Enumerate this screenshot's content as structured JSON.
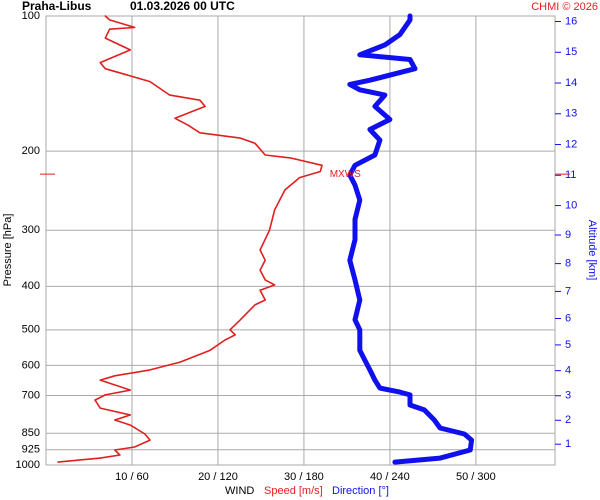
{
  "chart_data": {
    "type": "line",
    "title": "Praha-Libus",
    "subtitle": "01.03.2026 00 UTC",
    "credit": "CHMI © 2026",
    "ylabel": "Pressure [hPa]",
    "y2label": "Altitude [km]",
    "xlabel": "WIND",
    "y_scale": "log",
    "y2_scale": "standard-atmosphere",
    "grid": true,
    "xlim": [
      0,
      59.2
    ],
    "x2lim": [
      0,
      355.2
    ],
    "ylim": [
      1000,
      100
    ],
    "xticks": [
      {
        "value": 10,
        "label": "10 / 60"
      },
      {
        "value": 20,
        "label": "20 / 120"
      },
      {
        "value": 30,
        "label": "30 / 180"
      },
      {
        "value": 40,
        "label": "40 / 240"
      },
      {
        "value": 50,
        "label": "50 / 300"
      }
    ],
    "yticks": [
      100,
      200,
      300,
      400,
      500,
      600,
      700,
      850,
      925,
      1000
    ],
    "y2ticks": [
      1,
      2,
      3,
      4,
      5,
      6,
      7,
      8,
      9,
      10,
      11,
      12,
      13,
      14,
      15,
      16
    ],
    "annotations": [
      {
        "text": "MXWS",
        "x": 33,
        "y": 225,
        "color": "#e02020"
      }
    ],
    "series": [
      {
        "name": "Speed [m/s]",
        "color": "#e02020",
        "width": 1.6,
        "x": [
          1.4,
          6.3,
          8.6,
          8.0,
          10.3,
          12.1,
          11.5,
          9.8,
          8.0,
          9.8,
          6.3,
          5.7,
          6.9,
          9.8,
          6.3,
          8.0,
          12.1,
          15.6,
          19.1,
          20.8,
          22.0,
          21.4,
          22.6,
          24.3,
          25.5,
          24.9,
          26.6,
          25.5,
          24.9,
          25.5,
          24.9,
          26.0,
          26.6,
          27.8,
          29.5,
          31.9,
          32.1,
          28.4,
          25.5,
          24.3,
          22.6,
          17.9,
          16.5,
          15.0,
          18.5,
          17.9,
          14.4,
          12.1,
          6.9,
          6.3,
          9.8,
          6.9,
          7.4,
          10.3,
          7.4,
          6.9
        ],
        "y": [
          985,
          965,
          950,
          926,
          912,
          880,
          853,
          815,
          794,
          774,
          747,
          717,
          698,
          681,
          647,
          633,
          614,
          590,
          555,
          527,
          513,
          500,
          475,
          440,
          429,
          408,
          397,
          387,
          368,
          350,
          332,
          300,
          270,
          244,
          229,
          222,
          215,
          207,
          204,
          192,
          187,
          182,
          175,
          169,
          159,
          154,
          150,
          140,
          131,
          127,
          119,
          112,
          107,
          106,
          102,
          100
        ]
      },
      {
        "name": "Direction [°]",
        "color": "#1010ee",
        "width": 5,
        "axis": "x2",
        "x": [
          243.5,
          275,
          296,
          297,
          292,
          275,
          271,
          264,
          254,
          254,
          247,
          233,
          229.5,
          226,
          222.5,
          219,
          219,
          215.6,
          219,
          215.6,
          212,
          215.6,
          215.6,
          219,
          215.6,
          212,
          215.6,
          229.5,
          233,
          226,
          240,
          229.5,
          236.5,
          219,
          212,
          226,
          257.5,
          254,
          219,
          236.5,
          247,
          254,
          254
        ],
        "y": [
          985,
          965,
          926,
          880,
          853,
          827,
          794,
          754,
          735,
          698,
          688,
          674,
          647,
          614,
          584,
          555,
          500,
          475,
          429,
          387,
          350,
          315,
          284,
          257,
          238,
          226,
          215,
          204,
          189,
          179,
          170,
          159,
          150,
          146,
          142,
          139,
          131,
          125,
          122,
          116,
          110,
          102,
          100
        ]
      }
    ]
  }
}
